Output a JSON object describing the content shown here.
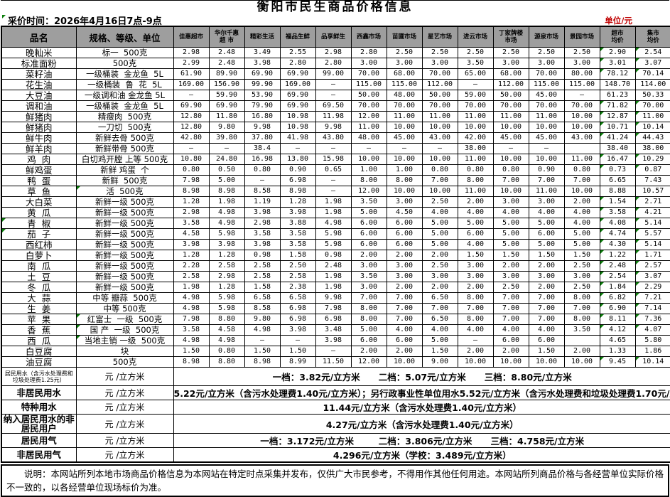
{
  "title": "衡阳市民生商品价格信息",
  "meta": {
    "survey_time": "采价时间：2026年4月16日7点-9点",
    "unit_label": "单位/元"
  },
  "table": {
    "headers": {
      "name": "品名",
      "spec": "规格、等级、单位",
      "markets": [
        "佳惠超市",
        "华尔千惠\n超 市",
        "精彩生活",
        "福品生鲜",
        "品享鲜生",
        "西鑫市场",
        "苗圃市场",
        "星艺市场",
        "进云市场",
        "丁家牌楼\n市场",
        "源泉市场",
        "景园市场"
      ],
      "avg_super": "超市\n均价",
      "avg_market": "集市\n均价"
    },
    "rows": [
      {
        "name": "晚籼米",
        "spec": "标一  500克",
        "prices": [
          "2.98",
          "2.48",
          "3.49",
          "2.55",
          "2.98",
          "2.80",
          "2.50",
          "2.50",
          "2.50",
          "2.50",
          "2.50",
          "2.50",
          "2.90",
          "2.54"
        ],
        "mark_avg": true
      },
      {
        "name": "标准面粉",
        "spec": "500克",
        "prices": [
          "2.99",
          "2.48",
          "3.98",
          "2.80",
          "2.80",
          "3.00",
          "3.00",
          "3.00",
          "3.50",
          "3.00",
          "3.00",
          "3.00",
          "3.01",
          "3.07"
        ],
        "mark_avg": true
      },
      {
        "name": "菜籽油",
        "spec": "一级桶装  金龙鱼  5L",
        "prices": [
          "61.90",
          "89.90",
          "69.90",
          "69.90",
          "99.00",
          "70.00",
          "68.00",
          "70.00",
          "65.00",
          "68.00",
          "70.00",
          "80.00",
          "78.12",
          "70.14"
        ],
        "mark_avg": true
      },
      {
        "name": "花生油",
        "spec": "一级桶装  鲁  花  5L",
        "prices": [
          "169.00",
          "156.90",
          "99.90",
          "169.00",
          "—",
          "115.00",
          "115.00",
          "112.00",
          "–",
          "112.00",
          "115.00",
          "115.00",
          "148.70",
          "114.00"
        ]
      },
      {
        "name": "大豆油",
        "spec": "一级调和油 金龙鱼 5L",
        "prices": [
          "–",
          "59.90",
          "53.90",
          "69.90",
          "—",
          "50.00",
          "48.00",
          "50.00",
          "59.00",
          "50.00",
          "45.00",
          "–",
          "61.23",
          "50.33"
        ]
      },
      {
        "name": "调和油",
        "spec": "一级桶装  金龙鱼  5L",
        "prices": [
          "69.90",
          "69.90",
          "79.90",
          "69.90",
          "69.50",
          "70.00",
          "70.00",
          "70.00",
          "70.00",
          "70.00",
          "70.00",
          "70.00",
          "71.82",
          "70.00"
        ],
        "mark_avg": true
      },
      {
        "name": "鲜猪肉",
        "spec": "精瘦肉  500克",
        "prices": [
          "12.80",
          "11.80",
          "16.80",
          "10.98",
          "11.98",
          "12.00",
          "11.00",
          "11.00",
          "11.00",
          "11.00",
          "11.00",
          "10.00",
          "12.87",
          "11.00"
        ],
        "mark_avg": true
      },
      {
        "name": "鲜猪肉",
        "spec": "一刀切  500克",
        "prices": [
          "12.80",
          "9.80",
          "9.98",
          "10.98",
          "9.98",
          "11.00",
          "10.00",
          "10.00",
          "10.00",
          "10.00",
          "10.00",
          "10.00",
          "10.71",
          "10.14"
        ],
        "mark_avg": true
      },
      {
        "name": "鲜牛肉",
        "spec": "新鲜去骨 500克",
        "prices": [
          "42.80",
          "39.80",
          "37.80",
          "41.98",
          "43.80",
          "48.00",
          "45.00",
          "43.00",
          "42.00",
          "45.00",
          "45.00",
          "43.00",
          "41.24",
          "44.43"
        ],
        "mark_avg": true
      },
      {
        "name": "鲜羊肉",
        "spec": "新鲜带骨 500克",
        "prices": [
          "–",
          "–",
          "38.4",
          "–",
          "–",
          "–",
          "–",
          "–",
          "38.00",
          "–",
          "–",
          "",
          "38.40",
          "38.00"
        ]
      },
      {
        "name": "鸡  肉",
        "spec": "白切鸡开膛 上等 500克",
        "prices": [
          "10.80",
          "24.80",
          "16.98",
          "13.80",
          "15.98",
          "10.00",
          "10.00",
          "10.00",
          "11.00",
          "10.00",
          "10.00",
          "11.00",
          "16.47",
          "10.29"
        ],
        "mark_avg": true
      },
      {
        "name": "鲜鸡蛋",
        "spec": "新鲜 鸡蛋  个",
        "prices": [
          "0.80",
          "0.50",
          "0.80",
          "0.90",
          "0.65",
          "1.00",
          "1.00",
          "0.80",
          "0.80",
          "0.80",
          "0.90",
          "0.80",
          "0.73",
          "0.87"
        ],
        "mark_avg": true
      },
      {
        "name": "鸭  蛋",
        "spec": "新鲜  500克",
        "prices": [
          "7.98",
          "5.00",
          "–",
          "6.98",
          "—",
          "8.00",
          "8.00",
          "7.00",
          "8.00",
          "7.00",
          "7.00",
          "7.00",
          "6.65",
          "7.43"
        ]
      },
      {
        "name": "草  鱼",
        "spec": "活  500克",
        "prices": [
          "8.98",
          "8.98",
          "8.58",
          "8.98",
          "—",
          "12.00",
          "10.00",
          "10.00",
          "11.00",
          "10.00",
          "11.00",
          "10.00",
          "8.88",
          "10.57"
        ],
        "mark_spec": true
      },
      {
        "name": "大白菜",
        "spec": "新鲜一级 500克",
        "prices": [
          "1.28",
          "1.98",
          "1.19",
          "1.28",
          "1.98",
          "3.50",
          "3.00",
          "2.50",
          "2.00",
          "3.00",
          "3.00",
          "2.00",
          "1.54",
          "2.71"
        ],
        "mark_avg": true
      },
      {
        "name": "黄  瓜",
        "spec": "新鲜一级 500克",
        "prices": [
          "2.98",
          "4.98",
          "3.98",
          "3.98",
          "1.98",
          "5.00",
          "4.50",
          "4.00",
          "4.00",
          "4.00",
          "4.00",
          "4.00",
          "3.58",
          "4.21"
        ],
        "mark_avg": true
      },
      {
        "name": "青  椒",
        "spec": "新鲜一级 500克",
        "prices": [
          "3.58",
          "4.98",
          "2.98",
          "3.88",
          "4.98",
          "6.00",
          "6.00",
          "5.00",
          "5.00",
          "5.00",
          "5.00",
          "4.00",
          "4.08",
          "5.14"
        ],
        "mark_avg": true,
        "mark_name": true
      },
      {
        "name": "茄  子",
        "spec": "新鲜一级 500克",
        "prices": [
          "4.58",
          "5.98",
          "3.58",
          "3.58",
          "5.98",
          "6.00",
          "6.00",
          "5.00",
          "6.00",
          "5.00",
          "6.00",
          "5.00",
          "4.74",
          "5.57"
        ],
        "mark_avg": true,
        "mark_name": true
      },
      {
        "name": "西红柿",
        "spec": "新鲜一级 500克",
        "prices": [
          "3.98",
          "3.98",
          "3.98",
          "3.58",
          "5.98",
          "6.00",
          "6.00",
          "5.00",
          "4.00",
          "5.00",
          "5.00",
          "5.00",
          "4.30",
          "5.14"
        ],
        "mark_avg": true
      },
      {
        "name": "白萝卜",
        "spec": "新鲜一级 500克",
        "prices": [
          "1.28",
          "1.28",
          "0.98",
          "1.58",
          "0.98",
          "2.00",
          "2.00",
          "2.00",
          "1.50",
          "1.50",
          "1.50",
          "1.50",
          "1.22",
          "1.71"
        ],
        "mark_avg": true
      },
      {
        "name": "南  瓜",
        "spec": "新鲜一级 500克",
        "prices": [
          "2.28",
          "2.58",
          "2.58",
          "2.50",
          "2.48",
          "3.00",
          "3.00",
          "2.50",
          "3.00",
          "2.00",
          "2.00",
          "2.50",
          "2.48",
          "2.57"
        ],
        "mark_avg": true
      },
      {
        "name": "土  豆",
        "spec": "新鲜一级 500克",
        "prices": [
          "2.58",
          "2.98",
          "2.58",
          "2.58",
          "1.98",
          "3.50",
          "3.00",
          "3.00",
          "3.00",
          "3.00",
          "3.00",
          "3.00",
          "2.54",
          "3.07"
        ],
        "mark_avg": true
      },
      {
        "name": "冬  瓜",
        "spec": "新鲜一级 500克",
        "prices": [
          "1.98",
          "1.28",
          "1.58",
          "2.38",
          "1.98",
          "3.00",
          "2.00",
          "2.00",
          "2.00",
          "2.50",
          "2.00",
          "2.50",
          "1.84",
          "2.29"
        ],
        "mark_avg": true
      },
      {
        "name": "大  蒜",
        "spec": "中等 瓣蒜  500克",
        "prices": [
          "4.98",
          "5.98",
          "6.58",
          "6.58",
          "9.98",
          "7.00",
          "7.00",
          "6.50",
          "8.00",
          "7.00",
          "7.00",
          "8.00",
          "6.82",
          "7.21"
        ],
        "mark_avg": true
      },
      {
        "name": "生  姜",
        "spec": "中等 500克",
        "prices": [
          "4.98",
          "5.98",
          "8.58",
          "6.98",
          "7.98",
          "8.00",
          "7.00",
          "7.00",
          "7.00",
          "7.00",
          "7.00",
          "7.00",
          "6.90",
          "7.14"
        ],
        "mark_avg": true
      },
      {
        "name": "苹  果",
        "spec": "红富士  一级  500克",
        "prices": [
          "7.98",
          "8.80",
          "9.80",
          "6.98",
          "6.98",
          "8.00",
          "7.00",
          "6.50",
          "8.00",
          "7.00",
          "7.00",
          "8.00",
          "8.11",
          "7.36"
        ],
        "mark_avg": true,
        "mark_spec": true
      },
      {
        "name": "香  蕉",
        "spec": "国 产  一级  500克",
        "prices": [
          "3.58",
          "4.58",
          "4.98",
          "3.98",
          "3.48",
          "5.00",
          "4.00",
          "4.00",
          "4.00",
          "4.00",
          "4.00",
          "3.50",
          "4.12",
          "4.07"
        ],
        "mark_avg": true,
        "mark_spec": true
      },
      {
        "name": "西  瓜",
        "spec": "当地主销 一级  500克",
        "prices": [
          "4.98",
          "4.98",
          "–",
          "–",
          "3.98",
          "6.00",
          "6.00",
          "5.00",
          "–",
          "6.00",
          "6.00",
          "",
          "4.65",
          "5.80"
        ],
        "mark_spec": true
      },
      {
        "name": "白豆腐",
        "spec": "块",
        "prices": [
          "1.50",
          "0.80",
          "1.50",
          "1.50",
          "—",
          "2.00",
          "2.00",
          "1.50",
          "2.00",
          "2.00",
          "1.50",
          "2.00",
          "1.33",
          "1.86"
        ]
      },
      {
        "name": "油豆腐",
        "spec": "500克",
        "prices": [
          "8.98",
          "8.80",
          "8.98",
          "8.99",
          "11.50",
          "12.00",
          "10.00",
          "9.00",
          "10.00",
          "10.00",
          "10.00",
          "10.00",
          "9.45",
          "10.14"
        ],
        "mark_avg": true
      }
    ]
  },
  "utilities": [
    {
      "name": "居民用水（含污水处理费和垃圾处理费1.25元）",
      "small": true,
      "h": "u-h26",
      "unit": "元 /立方米",
      "value": "一档：3.82元/立方米      二档：5.07元/立方米      三档：8.80元/立方米"
    },
    {
      "name": "非居民用水",
      "small": false,
      "h": "u-h20",
      "unit": "元 /立方米",
      "value": "5.22元/立方米（含污水处理费1.40元/立方米）；另行政事业性单位用水5.52元/立方米（含污水处理费和垃圾处理费1.70元/立方米）"
    },
    {
      "name": "特种用水",
      "small": false,
      "h": "u-h20",
      "unit": "元 /立方米",
      "value": "11.44元/立方米（含污水处理费1.40元/立方米）"
    },
    {
      "name": "纳入居民用水的非居民用户",
      "small": false,
      "h": "u-h26",
      "unit": "元 /立方米",
      "value": "4.27元/立方米（含污水处理费1.40元/立方米）"
    },
    {
      "name": "居民用气",
      "small": false,
      "h": "u-h20",
      "unit": "元 /立方米",
      "value": "一档：3.172元/立方米        二档：3.806元/立方米      三档：4.758元/立方米"
    },
    {
      "name": "非居民用气",
      "small": false,
      "h": "u-h16",
      "unit": "元 /立方米",
      "value": "4.296元/立方米（学校：3.489元/立方米）"
    }
  ],
  "note": "说明：本网站所列本地市场商品价格信息为本网站在特定时点采集并发布，仅供广大市民参考，不得用作其他任何用途。本网站所列商品价格与各经营单位实际价格不一致的，以各经营单位现场标价为准。",
  "colors": {
    "header_bg": "#9e9e9e",
    "unit_label": "#c00000",
    "comment_marker": "#0a7d0a"
  }
}
